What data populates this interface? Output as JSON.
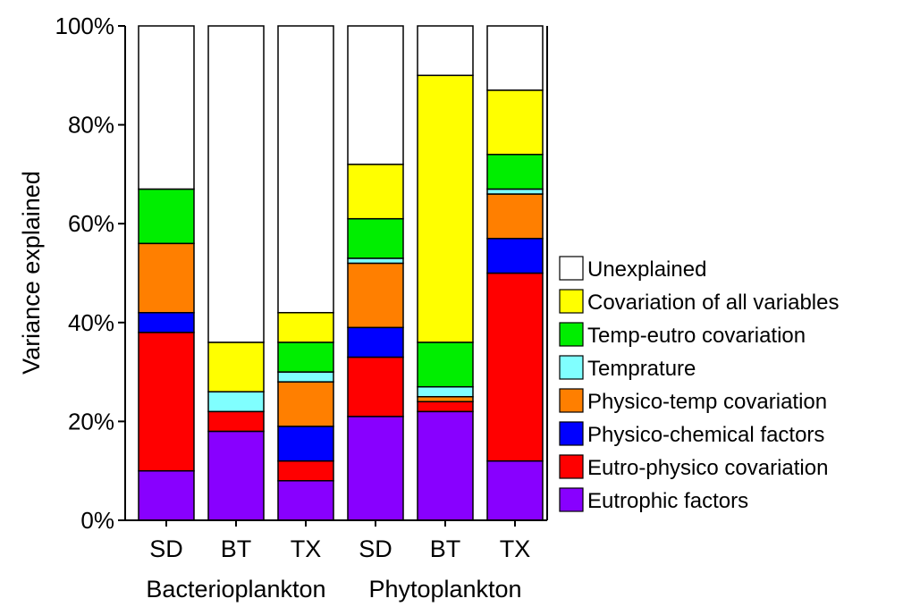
{
  "chart_data": {
    "type": "bar",
    "stacked": true,
    "title": "",
    "xlabel": "",
    "ylabel": "Variance explained",
    "ylim": [
      0,
      100
    ],
    "y_ticks": [
      "0%",
      "20%",
      "40%",
      "60%",
      "80%",
      "100%"
    ],
    "y_tick_values": [
      0,
      20,
      40,
      60,
      80,
      100
    ],
    "categories": [
      "SD",
      "BT",
      "TX",
      "SD",
      "BT",
      "TX"
    ],
    "groups": [
      {
        "name": "Bacterioplankton",
        "categories": [
          "SD",
          "BT",
          "TX"
        ]
      },
      {
        "name": "Phytoplankton",
        "categories": [
          "SD",
          "BT",
          "TX"
        ]
      }
    ],
    "legend_position": "right",
    "series": [
      {
        "name": "Eutrophic factors",
        "color": "#8800ff",
        "values": [
          10,
          18,
          8,
          21,
          22,
          12
        ]
      },
      {
        "name": "Eutro-physico covariation",
        "color": "#ff0000",
        "values": [
          28,
          4,
          4,
          12,
          2,
          38
        ]
      },
      {
        "name": "Physico-chemical factors",
        "color": "#0000ff",
        "values": [
          4,
          0,
          7,
          6,
          0,
          7
        ]
      },
      {
        "name": "Physico-temp covariation",
        "color": "#ff7f00",
        "values": [
          14,
          0,
          9,
          13,
          1,
          9
        ]
      },
      {
        "name": "Temprature",
        "color": "#80ffff",
        "values": [
          0,
          4,
          2,
          1,
          2,
          1
        ]
      },
      {
        "name": "Temp-eutro covariation",
        "color": "#00ee00",
        "values": [
          11,
          0,
          6,
          8,
          9,
          7
        ]
      },
      {
        "name": "Covariation of all variables",
        "color": "#ffff00",
        "values": [
          0,
          10,
          6,
          11,
          54,
          13
        ]
      },
      {
        "name": "Unexplained",
        "color": "#ffffff",
        "values": [
          33,
          64,
          58,
          28,
          10,
          13
        ]
      }
    ],
    "legend_order": [
      "Unexplained",
      "Covariation of all variables",
      "Temp-eutro covariation",
      "Temprature",
      "Physico-temp covariation",
      "Physico-chemical factors",
      "Eutro-physico covariation",
      "Eutrophic factors"
    ]
  }
}
